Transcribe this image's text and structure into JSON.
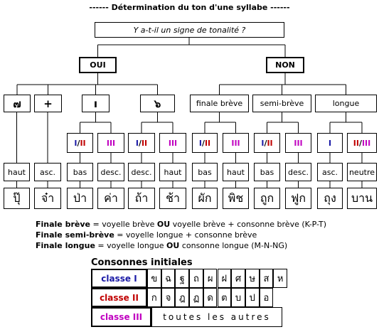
{
  "title": "------ Détermination du ton d'une syllabe ------",
  "question": "Y a-t-il un signe de tonalité ?",
  "branches": [
    {
      "label": "OUI",
      "nodes": [
        {
          "label": "๗",
          "leaves": [
            {
              "tone": "haut",
              "example": "ปุ๊"
            }
          ]
        },
        {
          "label": "+",
          "leaves": [
            {
              "tone": "asc.",
              "example": "จ๋า"
            }
          ]
        },
        {
          "label": "ı",
          "leaves": [
            {
              "class": [
                {
                  "text": "I",
                  "color": "#1a1aa6"
                },
                {
                  "text": "/",
                  "color": "#000000"
                },
                {
                  "text": "II",
                  "color": "#c00000"
                }
              ],
              "tone": "bas",
              "example": "ป่า"
            },
            {
              "class": [
                {
                  "text": "III",
                  "color": "#c000c0"
                }
              ],
              "tone": "desc.",
              "example": "ค่า"
            }
          ]
        },
        {
          "label": "๖",
          "leaves": [
            {
              "class": [
                {
                  "text": "I",
                  "color": "#1a1aa6"
                },
                {
                  "text": "/",
                  "color": "#000000"
                },
                {
                  "text": "II",
                  "color": "#c00000"
                }
              ],
              "tone": "desc.",
              "example": "ถ้า"
            },
            {
              "class": [
                {
                  "text": "III",
                  "color": "#c000c0"
                }
              ],
              "tone": "haut",
              "example": "ช้า"
            }
          ]
        }
      ]
    },
    {
      "label": "NON",
      "nodes": [
        {
          "label": "finale brève",
          "leaves": [
            {
              "class": [
                {
                  "text": "I",
                  "color": "#1a1aa6"
                },
                {
                  "text": "/",
                  "color": "#000000"
                },
                {
                  "text": "II",
                  "color": "#c00000"
                }
              ],
              "tone": "bas",
              "example": "ผัก"
            },
            {
              "class": [
                {
                  "text": "III",
                  "color": "#c000c0"
                }
              ],
              "tone": "haut",
              "example": "พิช"
            }
          ]
        },
        {
          "label": "semi-brève",
          "leaves": [
            {
              "class": [
                {
                  "text": "I",
                  "color": "#1a1aa6"
                },
                {
                  "text": "/",
                  "color": "#000000"
                },
                {
                  "text": "II",
                  "color": "#c00000"
                }
              ],
              "tone": "bas",
              "example": "ถูก"
            },
            {
              "class": [
                {
                  "text": "III",
                  "color": "#c000c0"
                }
              ],
              "tone": "desc.",
              "example": "ฟูก"
            }
          ]
        },
        {
          "label": "longue",
          "leaves": [
            {
              "class": [
                {
                  "text": "I",
                  "color": "#1a1aa6"
                }
              ],
              "tone": "asc.",
              "example": "ถุง"
            },
            {
              "class": [
                {
                  "text": "II",
                  "color": "#c00000"
                },
                {
                  "text": "/",
                  "color": "#000000"
                },
                {
                  "text": "III",
                  "color": "#c000c0"
                }
              ],
              "tone": "neutre",
              "example": "บาน"
            }
          ]
        }
      ]
    }
  ],
  "notes": [
    [
      "Finale brève",
      " = voyelle brève ",
      "OU",
      " voyelle brève + consonne brève (K-P-T)"
    ],
    [
      "Finale semi-brève",
      " = voyelle longue + consonne brève"
    ],
    [
      "Finale longue",
      " = voyelle longue ",
      "OU",
      " consonne longue (M-N-NG)"
    ]
  ],
  "consonants": {
    "title": "Consonnes initiales",
    "rows": [
      {
        "label": "classe I",
        "color": "#1a1aa6",
        "letters": [
          "ข",
          "ฉ",
          "ฐ",
          "ถ",
          "ผ",
          "ฝ",
          "ศ",
          "ษ",
          "ส",
          "ห"
        ]
      },
      {
        "label": "classe II",
        "color": "#c00000",
        "letters": [
          "ก",
          "จ",
          "ฎ",
          "ฏ",
          "ด",
          "ต",
          "บ",
          "ป",
          "อ"
        ]
      },
      {
        "label": "classe III",
        "color": "#c000c0",
        "text": "toutes les autres"
      }
    ]
  }
}
